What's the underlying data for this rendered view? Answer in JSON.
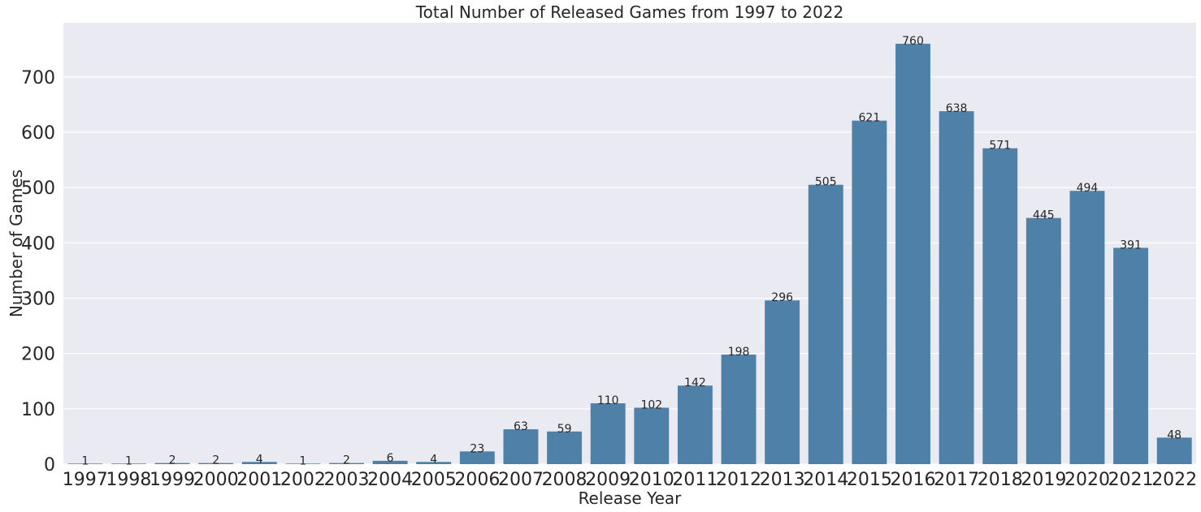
{
  "chart_data": {
    "type": "bar",
    "title": "Total Number of Released Games from 1997 to 2022",
    "xlabel": "Release Year",
    "ylabel": "Number of Games",
    "categories": [
      "1997",
      "1998",
      "1999",
      "2000",
      "2001",
      "2002",
      "2003",
      "2004",
      "2005",
      "2006",
      "2007",
      "2008",
      "2009",
      "2010",
      "2011",
      "2012",
      "2013",
      "2014",
      "2015",
      "2016",
      "2017",
      "2018",
      "2019",
      "2020",
      "2021",
      "2022"
    ],
    "values": [
      1,
      1,
      2,
      2,
      4,
      1,
      2,
      6,
      4,
      23,
      63,
      59,
      110,
      102,
      142,
      198,
      296,
      505,
      621,
      760,
      638,
      571,
      445,
      494,
      391,
      48
    ],
    "yticks": [
      0,
      100,
      200,
      300,
      400,
      500,
      600,
      700
    ],
    "ylim": [
      0,
      798
    ],
    "grid": true,
    "data_labels": true,
    "colors": {
      "bar": "#4f81a8",
      "plot_background": "#eaeaf2",
      "grid": "#ffffff"
    }
  }
}
